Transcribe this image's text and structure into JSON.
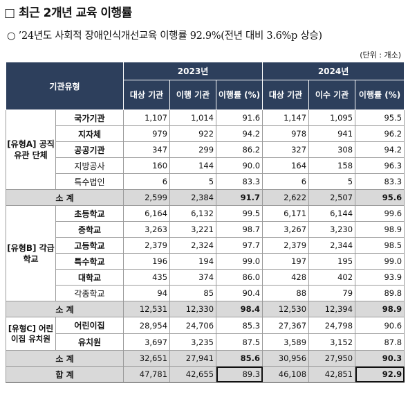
{
  "title": "□ 최근 2개년 교육 이행률",
  "subtitle": "○ ’24년도 사회적 장애인식개선교육 이행률 92.9%(전년 대비 3.6%p 상승)",
  "unit": "(단위 : 개소)",
  "header": {
    "org_type": "기관유형",
    "year_2023": "2023년",
    "year_2024": "2024년",
    "cols_2023": [
      "대상 기관",
      "이행 기관",
      "이행률 (%)"
    ],
    "cols_2024": [
      "대상 기관",
      "이수 기관",
      "이행률 (%)"
    ]
  },
  "groups": {
    "a": "[유형A] 공직 유관 단체",
    "b": "[유형B] 각급 학교",
    "c": "[유형C] 어린이집 유치원"
  },
  "rows_a": [
    {
      "name": "국가기관",
      "v": [
        "1,107",
        "1,014",
        "91.6",
        "1,147",
        "1,095",
        "95.5"
      ]
    },
    {
      "name": "지자체",
      "v": [
        "979",
        "922",
        "94.2",
        "978",
        "941",
        "96.2"
      ]
    },
    {
      "name": "공공기관",
      "v": [
        "347",
        "299",
        "86.2",
        "327",
        "308",
        "94.2"
      ]
    },
    {
      "name": "지방공사",
      "v": [
        "160",
        "144",
        "90.0",
        "164",
        "158",
        "96.3"
      ]
    },
    {
      "name": "특수법인",
      "v": [
        "6",
        "5",
        "83.3",
        "6",
        "5",
        "83.3"
      ]
    }
  ],
  "sub_a": {
    "label": "소 계",
    "v": [
      "2,599",
      "2,384",
      "91.7",
      "2,622",
      "2,507",
      "95.6"
    ]
  },
  "rows_b": [
    {
      "name": "초등학교",
      "v": [
        "6,164",
        "6,132",
        "99.5",
        "6,171",
        "6,144",
        "99.6"
      ]
    },
    {
      "name": "중학교",
      "v": [
        "3,263",
        "3,221",
        "98.7",
        "3,267",
        "3,230",
        "98.9"
      ]
    },
    {
      "name": "고등학교",
      "v": [
        "2,379",
        "2,324",
        "97.7",
        "2,379",
        "2,344",
        "98.5"
      ]
    },
    {
      "name": "특수학교",
      "v": [
        "196",
        "194",
        "99.0",
        "197",
        "195",
        "99.0"
      ]
    },
    {
      "name": "대학교",
      "v": [
        "435",
        "374",
        "86.0",
        "428",
        "402",
        "93.9"
      ]
    },
    {
      "name": "각종학교",
      "v": [
        "94",
        "85",
        "90.4",
        "88",
        "79",
        "89.8"
      ]
    }
  ],
  "sub_b": {
    "label": "소 계",
    "v": [
      "12,531",
      "12,330",
      "98.4",
      "12,530",
      "12,394",
      "98.9"
    ]
  },
  "rows_c": [
    {
      "name": "어린이집",
      "v": [
        "28,954",
        "24,706",
        "85.3",
        "27,367",
        "24,798",
        "90.6"
      ]
    },
    {
      "name": "유치원",
      "v": [
        "3,697",
        "3,235",
        "87.5",
        "3,589",
        "3,152",
        "87.8"
      ]
    }
  ],
  "sub_c": {
    "label": "소 계",
    "v": [
      "32,651",
      "27,941",
      "85.6",
      "30,956",
      "27,950",
      "90.3"
    ]
  },
  "total": {
    "label": "합 계",
    "v": [
      "47,781",
      "42,655",
      "89.3",
      "46,108",
      "42,851",
      "92.9"
    ]
  }
}
